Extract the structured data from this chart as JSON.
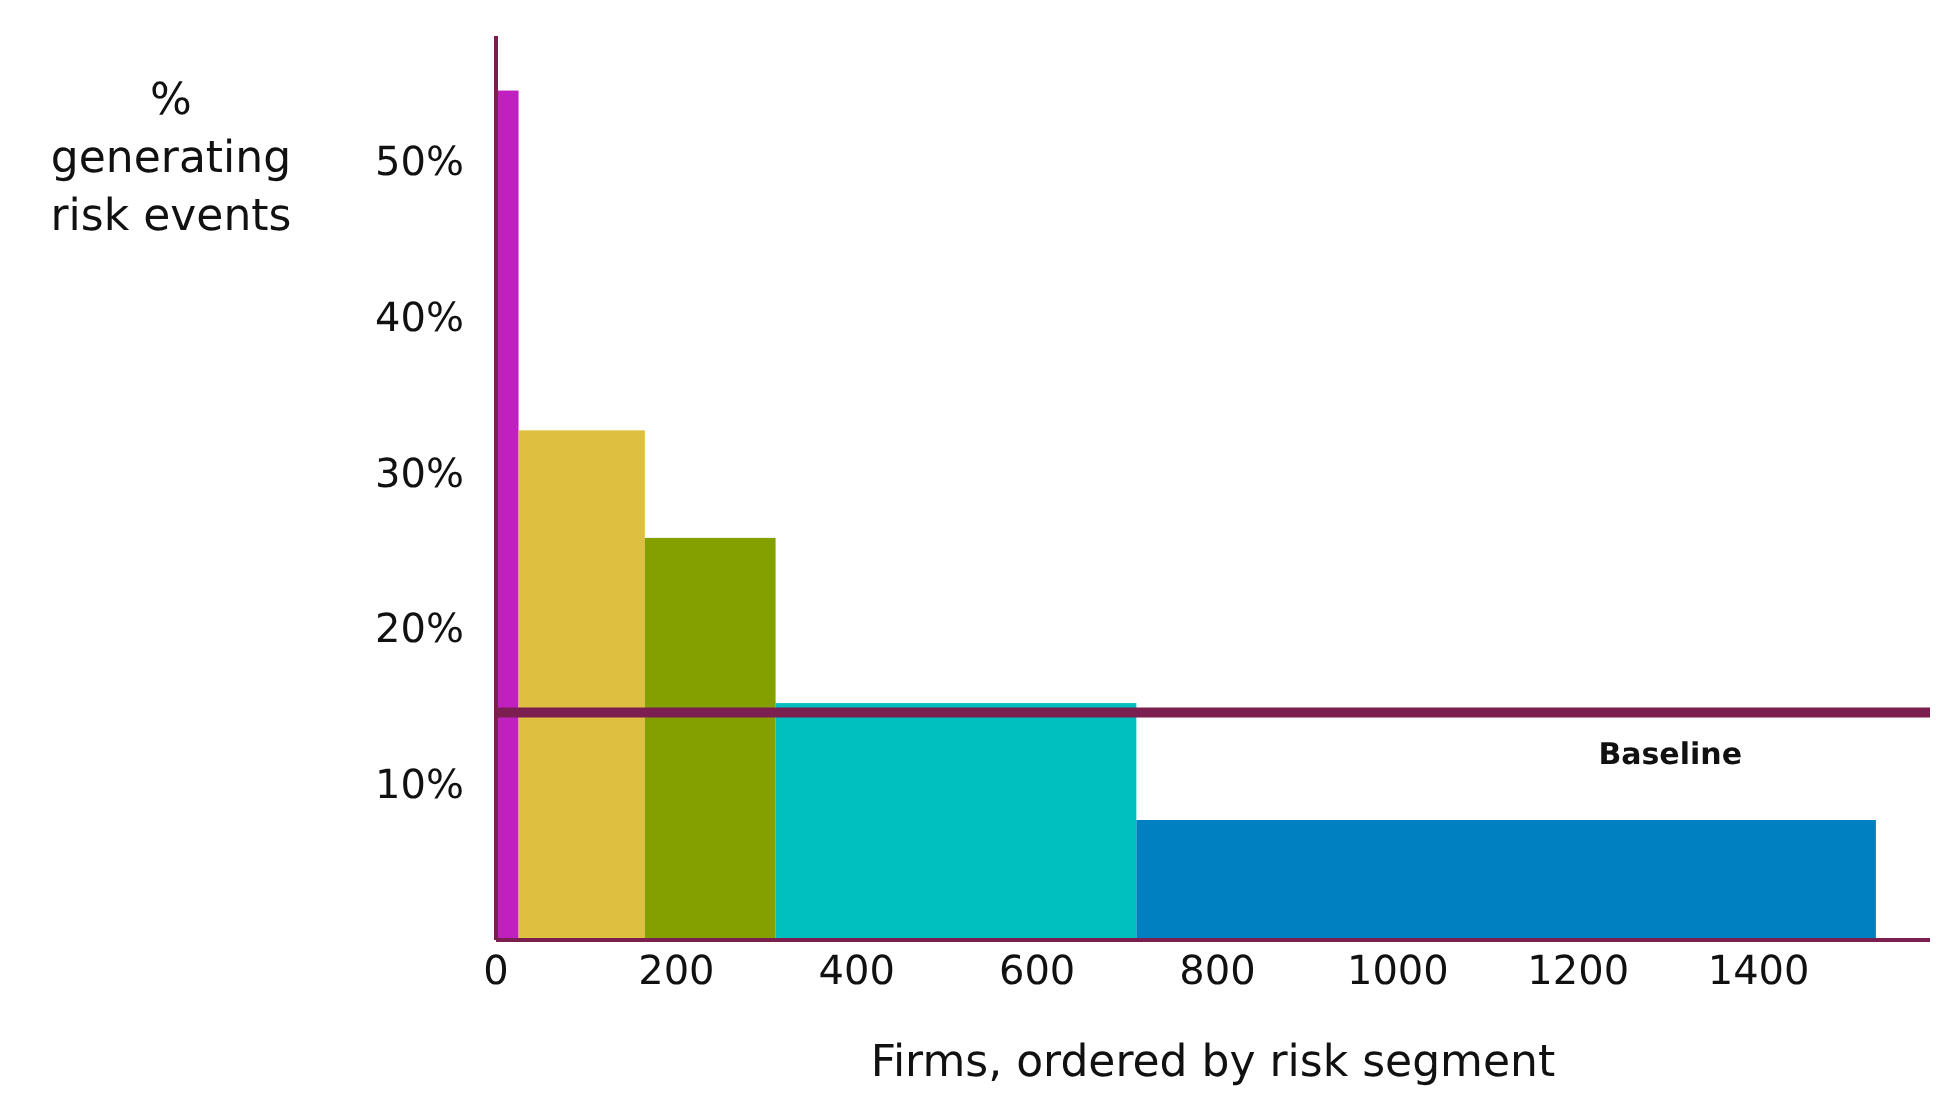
{
  "chart_data": {
    "type": "histogram",
    "xlabel": "Firms, ordered by risk segment",
    "ylabel": "% generating risk events",
    "bins": [
      0,
      25,
      165,
      310,
      710,
      1530
    ],
    "values": [
      54.5,
      32.7,
      25.8,
      15.2,
      7.7
    ],
    "colors": [
      "#c020c0",
      "#dfbf40",
      "#84a000",
      "#00bfbf",
      "#0080c0"
    ],
    "xlim": [
      0,
      1590
    ],
    "xticks": [
      0,
      200,
      400,
      600,
      800,
      1000,
      1200,
      1400
    ],
    "ylim": [
      0,
      58
    ],
    "yticks": [
      {
        "value": 10,
        "label": "10%"
      },
      {
        "value": 20,
        "label": "20%"
      },
      {
        "value": 30,
        "label": "30%"
      },
      {
        "value": 40,
        "label": "40%"
      },
      {
        "value": 50,
        "label": "50%"
      }
    ],
    "ref_lines": [
      {
        "axis": "y",
        "value": 14.6,
        "label": "Baseline",
        "color": "#7a1f4f"
      }
    ],
    "grid": false,
    "legend": false
  }
}
